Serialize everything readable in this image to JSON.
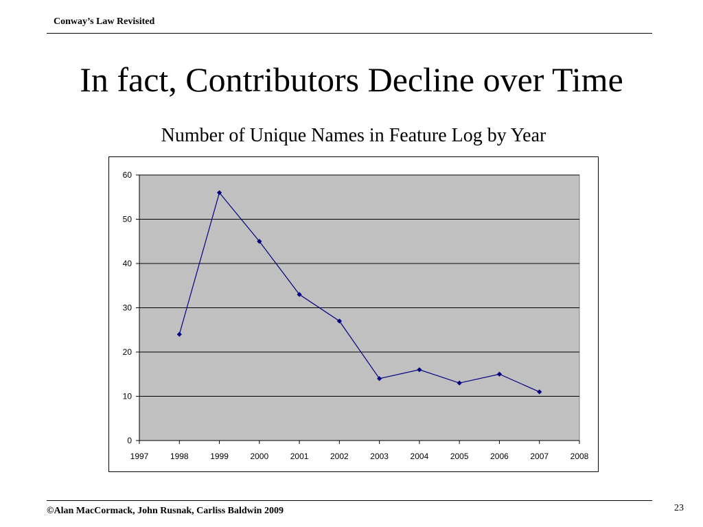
{
  "header": {
    "title": "Conway’s Law Revisited"
  },
  "slide": {
    "title": "In fact, Contributors Decline over Time"
  },
  "footer": {
    "copyright": "©Alan MacCormack, John Rusnak, Carliss Baldwin 2009",
    "page_number": "23"
  },
  "chart_data": {
    "type": "line",
    "title": "Number of Unique Names in Feature Log by Year",
    "xlabel": "",
    "ylabel": "",
    "x": [
      1998,
      1999,
      2000,
      2001,
      2002,
      2003,
      2004,
      2005,
      2006,
      2007
    ],
    "series": [
      {
        "values": [
          24,
          56,
          45,
          33,
          27,
          14,
          16,
          13,
          15,
          11
        ]
      }
    ],
    "xlim": [
      1997,
      2008
    ],
    "ylim": [
      0,
      60
    ],
    "xticks": [
      "1997",
      "1998",
      "1999",
      "2000",
      "2001",
      "2002",
      "2003",
      "2004",
      "2005",
      "2006",
      "2007",
      "2008"
    ],
    "yticks": [
      "0",
      "10",
      "20",
      "30",
      "40",
      "50",
      "60"
    ],
    "grid": "horizontal",
    "legend": "none",
    "colors": {
      "plot_background": "#c0c0c0",
      "line": "#000080",
      "marker": "#000080",
      "gridline": "#000000"
    }
  }
}
